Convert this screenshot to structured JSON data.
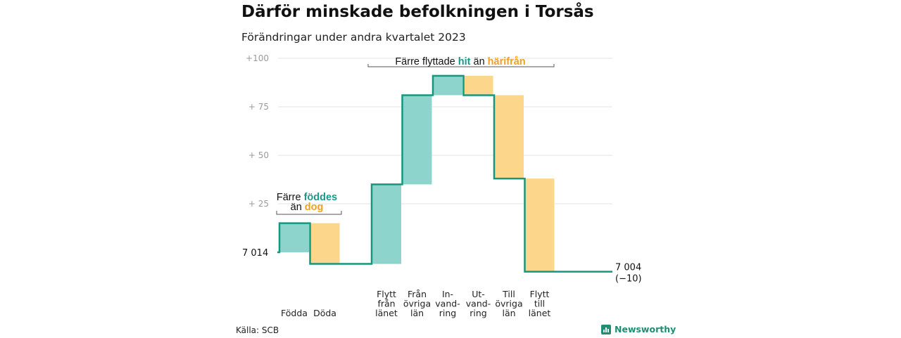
{
  "title": "Därför minskade befolkningen i Torsås",
  "subtitle": "Förändringar under andra kvartalet 2023",
  "source": "Källa: SCB",
  "brand": "Newsworthy",
  "colors": {
    "increase": "#8dd5cc",
    "decrease": "#fbd68b",
    "line": "#17967f",
    "grid": "#e3e3e3"
  },
  "chart_data": {
    "type": "waterfall",
    "title": "Därför minskade befolkningen i Torsås",
    "subtitle": "Förändringar under andra kvartalet 2023",
    "start": {
      "value": 7014,
      "label": "7 014"
    },
    "end": {
      "value": 7004,
      "label": "7 004",
      "change_label": "(−10)"
    },
    "ylim": [
      -12,
      100
    ],
    "yticks": [
      {
        "value": 25,
        "label": "+  25"
      },
      {
        "value": 50,
        "label": "+  50"
      },
      {
        "value": 75,
        "label": "+  75"
      },
      {
        "value": 100,
        "label": "+100"
      }
    ],
    "categories": [
      {
        "label": [
          "Födda"
        ],
        "value": 15,
        "direction": "up"
      },
      {
        "label": [
          "Döda"
        ],
        "value": -21,
        "direction": "down"
      },
      {
        "label": [
          "Flytt",
          "från",
          "länet"
        ],
        "value": 41,
        "direction": "up"
      },
      {
        "label": [
          "Från",
          "övriga",
          "län"
        ],
        "value": 46,
        "direction": "up"
      },
      {
        "label": [
          "In-",
          "vand-",
          "ring"
        ],
        "value": 10,
        "direction": "up"
      },
      {
        "label": [
          "Ut-",
          "vand-",
          "ring"
        ],
        "value": -10,
        "direction": "down"
      },
      {
        "label": [
          "Till",
          "övriga",
          "län"
        ],
        "value": -43,
        "direction": "down"
      },
      {
        "label": [
          "Flytt",
          "till",
          "länet"
        ],
        "value": -48,
        "direction": "down"
      }
    ],
    "annotations": [
      {
        "text": "Färre ",
        "highlight1": "födde",
        "highlight1_tail": "s",
        "line2_pre": "än ",
        "highlight2": "dog"
      },
      {
        "text": "Färre flyttade ",
        "highlight1": "hit",
        "mid": " än ",
        "highlight2": "härifrån"
      }
    ]
  }
}
